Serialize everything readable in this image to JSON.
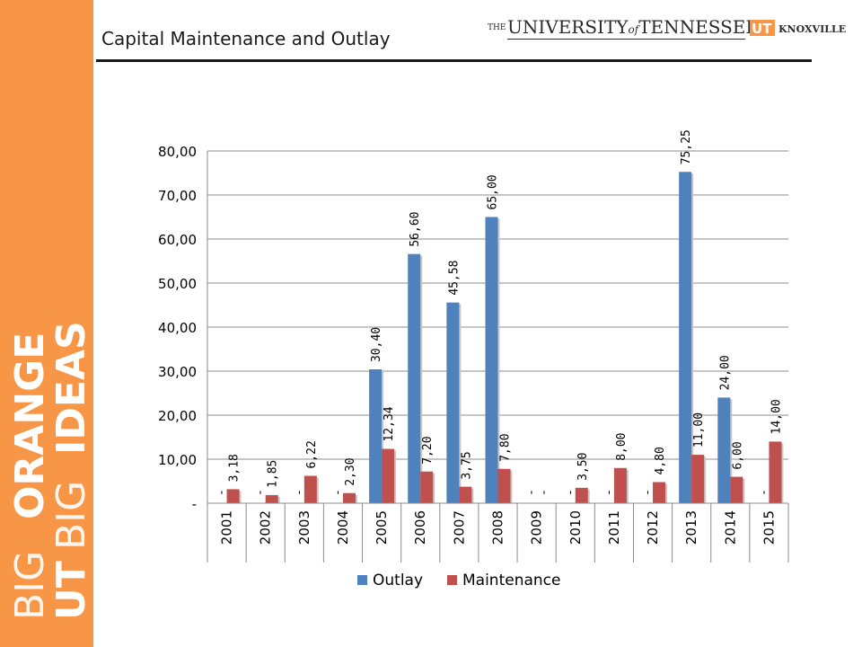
{
  "slide": {
    "title": "Capital Maintenance and Outlay",
    "logo": {
      "the": "THE",
      "university": "UNIVERSITY",
      "of": "of",
      "tennessee": "TENNESSEE",
      "ut": "UT",
      "knoxville": "KNOXVILLE"
    },
    "brand": {
      "line1": "BIG",
      "line2": "ORANGE",
      "line3": "UT",
      "line4": "BIG",
      "line5": "IDEAS"
    },
    "colors": {
      "sidebar": "#f79646",
      "outlay": "#4f81bd",
      "maintenance": "#c0504d"
    }
  },
  "chart_data": {
    "type": "bar",
    "title": "",
    "xlabel": "",
    "ylabel": "",
    "ylim": [
      0,
      80
    ],
    "yticks": [
      0,
      10,
      20,
      30,
      40,
      50,
      60,
      70,
      80
    ],
    "ytick_labels": [
      "-",
      "10,00",
      "20,00",
      "30,00",
      "40,00",
      "50,00",
      "60,00",
      "70,00",
      "80,00"
    ],
    "grid": true,
    "legend": "bottom",
    "categories": [
      "2001",
      "2002",
      "2003",
      "2004",
      "2005",
      "2006",
      "2007",
      "2008",
      "2009",
      "2010",
      "2011",
      "2012",
      "2013",
      "2014",
      "2015"
    ],
    "series": [
      {
        "name": "Outlay",
        "color": "#4f81bd",
        "values": [
          0,
          0,
          0,
          0,
          30.4,
          56.6,
          45.58,
          65.0,
          0,
          0,
          0,
          0,
          75.25,
          24.0,
          0
        ],
        "labels": [
          "-",
          "-",
          "-",
          "-",
          "30,40",
          "56,60",
          "45,58",
          "65,00",
          "-",
          "-",
          "-",
          "-",
          "75,25",
          "24,00",
          "-"
        ]
      },
      {
        "name": "Maintenance",
        "color": "#c0504d",
        "values": [
          3.18,
          1.85,
          6.22,
          2.3,
          12.34,
          7.2,
          3.75,
          7.8,
          0,
          3.5,
          8.0,
          4.8,
          11.0,
          6.0,
          14.0
        ],
        "labels": [
          "3,18",
          "1,85",
          "6,22",
          "2,30",
          "12,34",
          "7,20",
          "3,75",
          "7,80",
          "-",
          "3,50",
          "8,00",
          "4,80",
          "11,00",
          "6,00",
          "14,00"
        ]
      }
    ]
  }
}
